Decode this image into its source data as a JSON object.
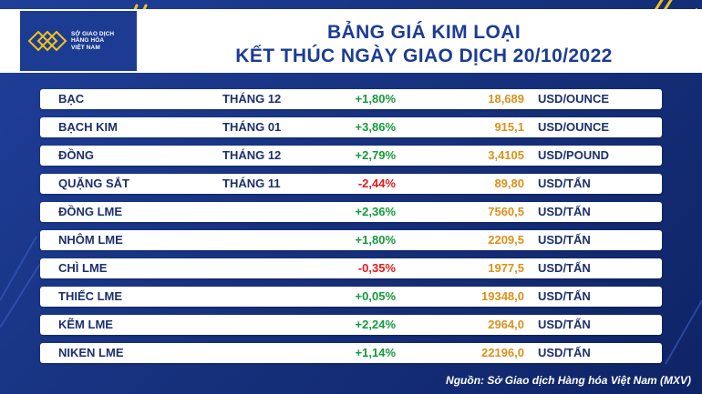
{
  "header": {
    "logo_lines": [
      "SỞ GIAO DỊCH",
      "HÀNG HÓA",
      "VIỆT NAM"
    ],
    "title_line1": "BẢNG GIÁ KIM LOẠI",
    "title_line2": "KẾT THÚC NGÀY GIAO DỊCH 20/10/2022"
  },
  "rows": [
    {
      "name": "BẠC",
      "month": "THÁNG 12",
      "change": "+1,80%",
      "price": "18,689",
      "unit": "USD/OUNCE"
    },
    {
      "name": "BẠCH KIM",
      "month": "THÁNG 01",
      "change": "+3,86%",
      "price": "915,1",
      "unit": "USD/OUNCE"
    },
    {
      "name": "ĐỒNG",
      "month": "THÁNG 12",
      "change": "+2,79%",
      "price": "3,4105",
      "unit": "USD/POUND"
    },
    {
      "name": "QUẶNG SẮT",
      "month": "THÁNG 11",
      "change": "-2,44%",
      "price": "89,80",
      "unit": "USD/TẤN"
    },
    {
      "name": "ĐỒNG LME",
      "month": "",
      "change": "+2,36%",
      "price": "7560,5",
      "unit": "USD/TẤN"
    },
    {
      "name": "NHÔM LME",
      "month": "",
      "change": "+1,80%",
      "price": "2209,5",
      "unit": "USD/TẤN"
    },
    {
      "name": "CHÌ LME",
      "month": "",
      "change": "-0,35%",
      "price": "1977,5",
      "unit": "USD/TẤN"
    },
    {
      "name": "THIẾC LME",
      "month": "",
      "change": "+0,05%",
      "price": "19348,0",
      "unit": "USD/TẤN"
    },
    {
      "name": "KẼM LME",
      "month": "",
      "change": "+2,24%",
      "price": "2964,0",
      "unit": "USD/TẤN"
    },
    {
      "name": "NIKEN LME",
      "month": "",
      "change": "+1,14%",
      "price": "22196,0",
      "unit": "USD/TẤN"
    }
  ],
  "colors": {
    "background": "#1c3c93",
    "positive": "#159a3a",
    "negative": "#e01b1b",
    "price": "#d9911b",
    "accent_lines": "#f2c21b"
  },
  "footer": {
    "source": "Nguồn: Sở Giao dịch Hàng hóa Việt Nam (MXV)"
  }
}
